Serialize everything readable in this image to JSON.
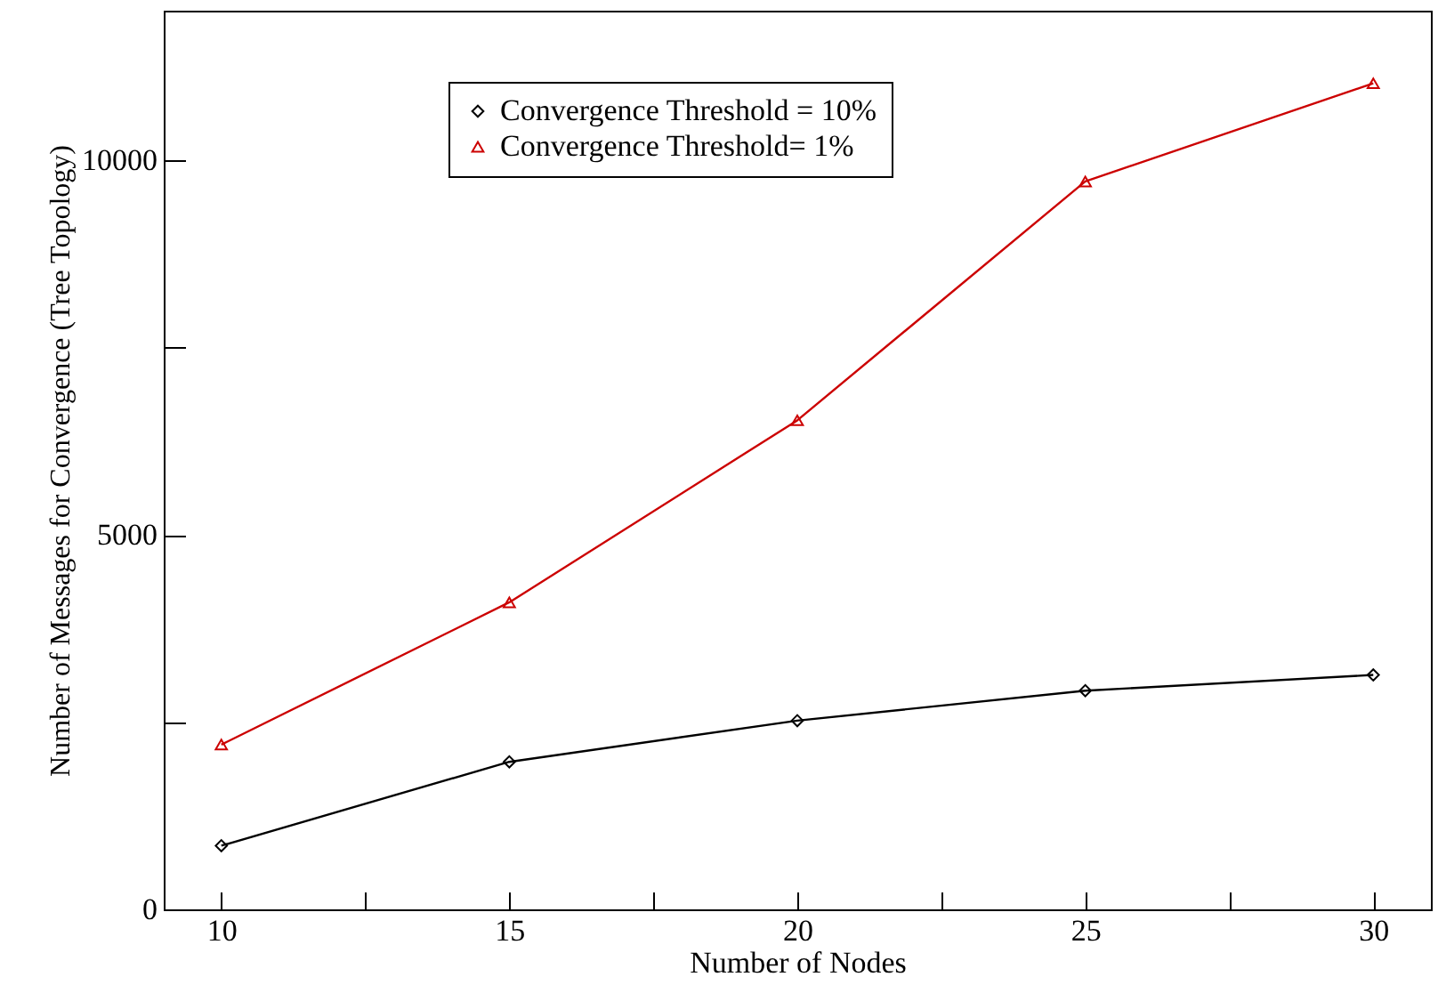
{
  "chart_data": {
    "type": "line",
    "xlabel": "Number of Nodes",
    "ylabel": "Number of Messages for Convergence (Tree Topology)",
    "x": [
      10,
      15,
      20,
      25,
      30
    ],
    "series": [
      {
        "name": "Convergence Threshold = 10%",
        "color": "#000000",
        "marker": "diamond",
        "values": [
          850,
          1970,
          2520,
          2920,
          3130
        ]
      },
      {
        "name": "Convergence Threshold= 1%",
        "color": "#cc0000",
        "marker": "triangle",
        "values": [
          2200,
          4100,
          6530,
          9720,
          11030
        ]
      }
    ],
    "xlim": [
      9,
      31
    ],
    "xticks": [
      10,
      {
        "value": 12.5,
        "label": null
      },
      15,
      {
        "value": 17.5,
        "label": null
      },
      20,
      {
        "value": 22.5,
        "label": null
      },
      25,
      {
        "value": 27.5,
        "label": null
      },
      30
    ],
    "ylim": [
      0,
      12000
    ],
    "yticks": [
      0,
      {
        "value": 2500,
        "label": null
      },
      5000,
      {
        "value": 7500,
        "label": null
      },
      10000
    ],
    "grid": false,
    "legend": "top",
    "line_style": "solid"
  }
}
